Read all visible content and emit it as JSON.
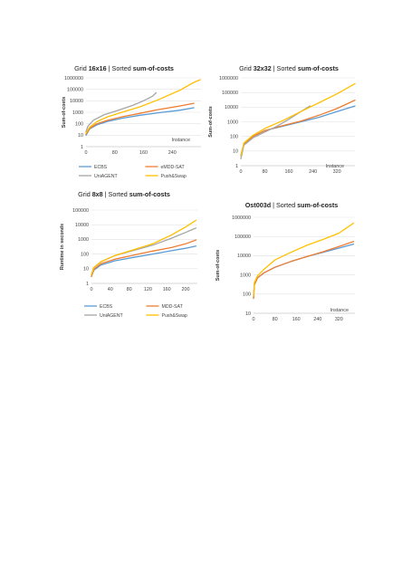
{
  "colors": {
    "ECBS": "#5b9bd5",
    "eMDD-SAT": "#ed7d31",
    "MDD-SAT": "#ed7d31",
    "UniAGENT": "#a5a5a5",
    "Push&Swap": "#ffc000"
  },
  "chart_data": [
    {
      "type": "line",
      "scale": "log",
      "title_prefix": "Grid ",
      "title_bold1": "16x16",
      "title_mid": " | Sorted ",
      "title_bold2": "sum-of-costs",
      "xlabel": "Instance",
      "ylabel": "Sum-of-costs",
      "xlim": [
        0,
        320
      ],
      "ylim": [
        1,
        1000000
      ],
      "xticks": [
        "0",
        "80",
        "160",
        "240"
      ],
      "xtick_values": [
        0,
        80,
        160,
        240
      ],
      "yticks": [
        "1",
        "10",
        "100",
        "1000",
        "10000",
        "100000",
        "1000000"
      ],
      "yticks_exp": [
        0,
        1,
        2,
        3,
        4,
        5,
        6
      ],
      "legend": [
        "ECBS",
        "eMDD-SAT",
        "UniAGENT",
        "Push&Swap"
      ],
      "series": [
        {
          "name": "ECBS",
          "x": [
            0,
            10,
            30,
            60,
            100,
            150,
            200,
            260,
            300
          ],
          "y": [
            10,
            35,
            80,
            160,
            300,
            550,
            900,
            1500,
            2500
          ]
        },
        {
          "name": "eMDD-SAT",
          "x": [
            0,
            10,
            30,
            60,
            100,
            150,
            200,
            260,
            300
          ],
          "y": [
            12,
            40,
            100,
            200,
            400,
            800,
            1700,
            3500,
            6000
          ]
        },
        {
          "name": "UniAGENT",
          "x": [
            0,
            5,
            20,
            50,
            90,
            130,
            160,
            185,
            195
          ],
          "y": [
            20,
            60,
            200,
            600,
            1500,
            4000,
            10000,
            25000,
            50000
          ]
        },
        {
          "name": "Push&Swap",
          "x": [
            0,
            10,
            30,
            60,
            100,
            150,
            200,
            260,
            300,
            318
          ],
          "y": [
            15,
            50,
            150,
            400,
            1000,
            3000,
            12000,
            80000,
            400000,
            700000
          ]
        }
      ]
    },
    {
      "type": "line",
      "scale": "log",
      "title_prefix": "Grid ",
      "title_bold1": "32x32",
      "title_mid": " | Sorted ",
      "title_bold2": "sum-of-costs",
      "xlabel": "Instance",
      "ylabel": "Sum-of-costs",
      "xlim": [
        0,
        380
      ],
      "ylim": [
        1,
        1000000
      ],
      "xticks": [
        "0",
        "80",
        "160",
        "240",
        "320"
      ],
      "xtick_values": [
        0,
        80,
        160,
        240,
        320
      ],
      "yticks": [
        "1",
        "10",
        "100",
        "1000",
        "10000",
        "100000",
        "1000000"
      ],
      "yticks_exp": [
        0,
        1,
        2,
        3,
        4,
        5,
        6
      ],
      "legend": [],
      "series": [
        {
          "name": "ECBS",
          "x": [
            0,
            10,
            40,
            80,
            140,
            200,
            260,
            320,
            380
          ],
          "y": [
            5,
            30,
            100,
            250,
            500,
            1000,
            2000,
            5000,
            12000
          ]
        },
        {
          "name": "eMDD-SAT",
          "x": [
            0,
            10,
            40,
            80,
            140,
            200,
            260,
            320,
            380
          ],
          "y": [
            5,
            30,
            100,
            250,
            550,
            1100,
            2800,
            8000,
            30000
          ]
        },
        {
          "name": "UniAGENT",
          "x": [
            0,
            10,
            40,
            80,
            120,
            160,
            200,
            230
          ],
          "y": [
            3,
            25,
            80,
            200,
            500,
            1500,
            5000,
            12000
          ]
        },
        {
          "name": "Push&Swap",
          "x": [
            0,
            10,
            40,
            80,
            140,
            200,
            260,
            320,
            380
          ],
          "y": [
            5,
            35,
            120,
            350,
            1200,
            5000,
            20000,
            80000,
            400000
          ]
        }
      ]
    },
    {
      "type": "line",
      "scale": "log",
      "title_prefix": "Grid ",
      "title_bold1": "8x8",
      "title_mid": " | Sorted ",
      "title_bold2": "sum-of-costs",
      "xlabel": "",
      "ylabel": "Runtime in seconds",
      "xlim": [
        0,
        225
      ],
      "ylim": [
        1,
        100000
      ],
      "xticks": [
        "0",
        "40",
        "80",
        "120",
        "160",
        "200"
      ],
      "xtick_values": [
        0,
        40,
        80,
        120,
        160,
        200
      ],
      "yticks": [
        "1",
        "10",
        "100",
        "1000",
        "10000",
        "100000"
      ],
      "yticks_exp": [
        0,
        1,
        2,
        3,
        4,
        5
      ],
      "legend": [
        "ECBS",
        "MDD-SAT",
        "UniAGENT",
        "Push&Swap"
      ],
      "series": [
        {
          "name": "ECBS",
          "x": [
            0,
            5,
            20,
            50,
            90,
            130,
            170,
            200,
            222
          ],
          "y": [
            3,
            8,
            18,
            35,
            60,
            100,
            170,
            250,
            350
          ]
        },
        {
          "name": "MDD-SAT",
          "x": [
            0,
            5,
            20,
            50,
            90,
            130,
            170,
            200,
            222
          ],
          "y": [
            3,
            9,
            22,
            45,
            85,
            160,
            280,
            500,
            900
          ]
        },
        {
          "name": "UniAGENT",
          "x": [
            0,
            5,
            20,
            50,
            90,
            130,
            170,
            200,
            222
          ],
          "y": [
            4,
            12,
            30,
            80,
            180,
            400,
            1200,
            3000,
            6000
          ]
        },
        {
          "name": "Push&Swap",
          "x": [
            0,
            5,
            20,
            50,
            90,
            130,
            170,
            200,
            222
          ],
          "y": [
            4,
            12,
            30,
            80,
            200,
            500,
            2000,
            7000,
            20000
          ]
        }
      ]
    },
    {
      "type": "line",
      "scale": "log",
      "title_prefix": "Ost003d",
      "title_bold1": "",
      "title_mid": " | Sorted ",
      "title_bold2": "sum-of-costs",
      "title_all_bold": true,
      "xlabel": "Instance",
      "ylabel": "Sum-of-costs",
      "xlim": [
        0,
        380
      ],
      "ylim": [
        10,
        1000000
      ],
      "xticks": [
        "0",
        "80",
        "160",
        "240",
        "320"
      ],
      "xtick_values": [
        0,
        80,
        160,
        240,
        320
      ],
      "yticks": [
        "10",
        "100",
        "1000",
        "10000",
        "100000",
        "1000000"
      ],
      "yticks_exp": [
        1,
        2,
        3,
        4,
        5,
        6
      ],
      "legend": [],
      "series": [
        {
          "name": "ECBS",
          "x": [
            0,
            3,
            15,
            40,
            80,
            140,
            200,
            260,
            320,
            375
          ],
          "y": [
            60,
            300,
            700,
            1300,
            2500,
            5000,
            9000,
            15000,
            25000,
            40000
          ]
        },
        {
          "name": "eMDD-SAT",
          "x": [
            0,
            3,
            15,
            40,
            80,
            140,
            200,
            260,
            320,
            375
          ],
          "y": [
            60,
            300,
            700,
            1300,
            2500,
            5000,
            9000,
            16000,
            30000,
            55000
          ]
        },
        {
          "name": "Push&Swap",
          "x": [
            0,
            3,
            15,
            40,
            80,
            140,
            200,
            260,
            320,
            375
          ],
          "y": [
            80,
            400,
            900,
            2000,
            6000,
            15000,
            35000,
            70000,
            150000,
            500000
          ]
        }
      ]
    }
  ]
}
